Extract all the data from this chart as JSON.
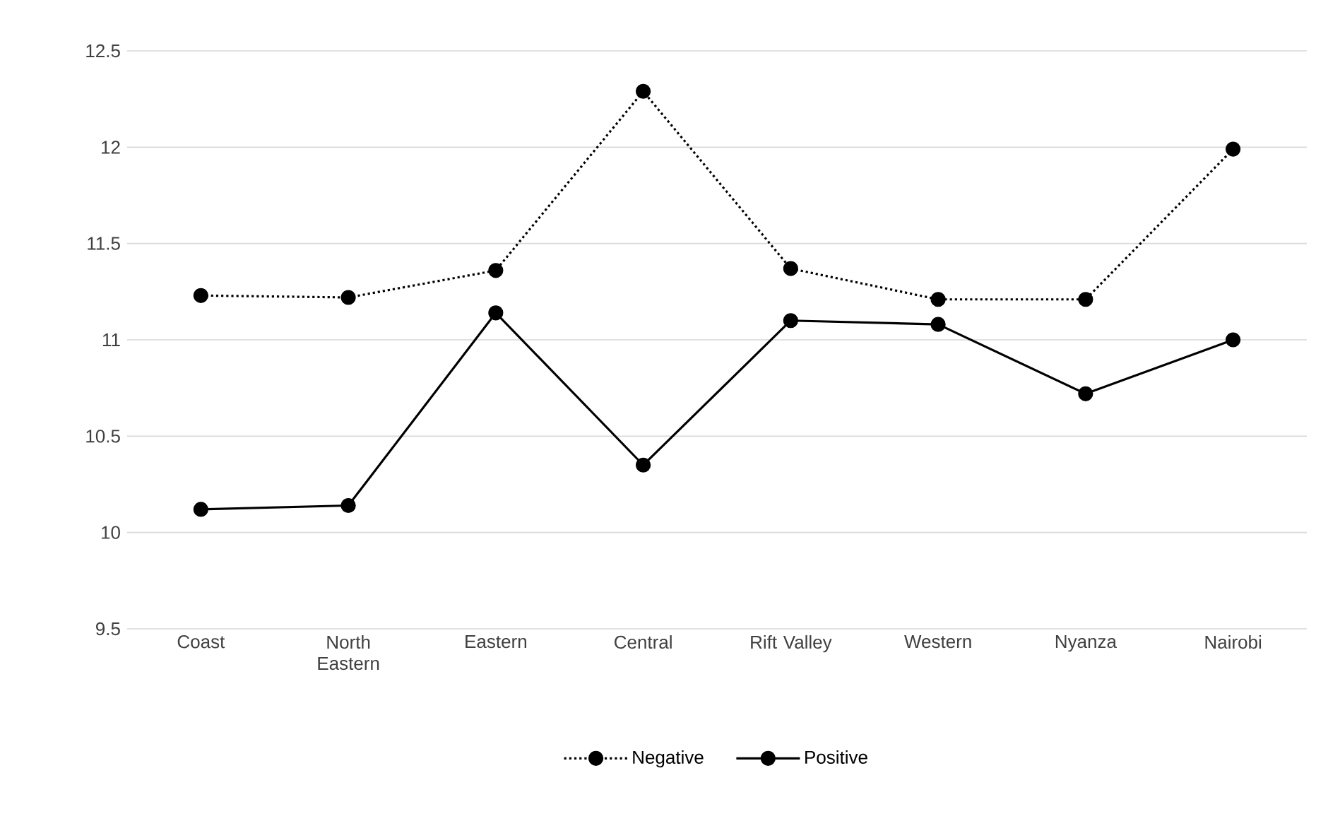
{
  "chart_data": {
    "type": "line",
    "categories": [
      "Coast",
      "North Eastern",
      "Eastern",
      "Central",
      "Rift Valley",
      "Western",
      "Nyanza",
      "Nairobi"
    ],
    "series": [
      {
        "name": "Negative",
        "color": "#000000",
        "line_style": "dotted",
        "values": [
          11.23,
          11.22,
          11.36,
          12.29,
          11.37,
          11.21,
          11.21,
          11.99
        ]
      },
      {
        "name": "Positive",
        "color": "#000000",
        "line_style": "solid",
        "values": [
          10.12,
          10.14,
          11.14,
          10.35,
          11.1,
          11.08,
          10.72,
          11.0
        ]
      }
    ],
    "ylim": [
      9.5,
      12.5
    ],
    "yticks": [
      9.5,
      10,
      10.5,
      11,
      11.5,
      12,
      12.5
    ],
    "grid": "y",
    "legend": "bottom",
    "marker": "circle"
  }
}
